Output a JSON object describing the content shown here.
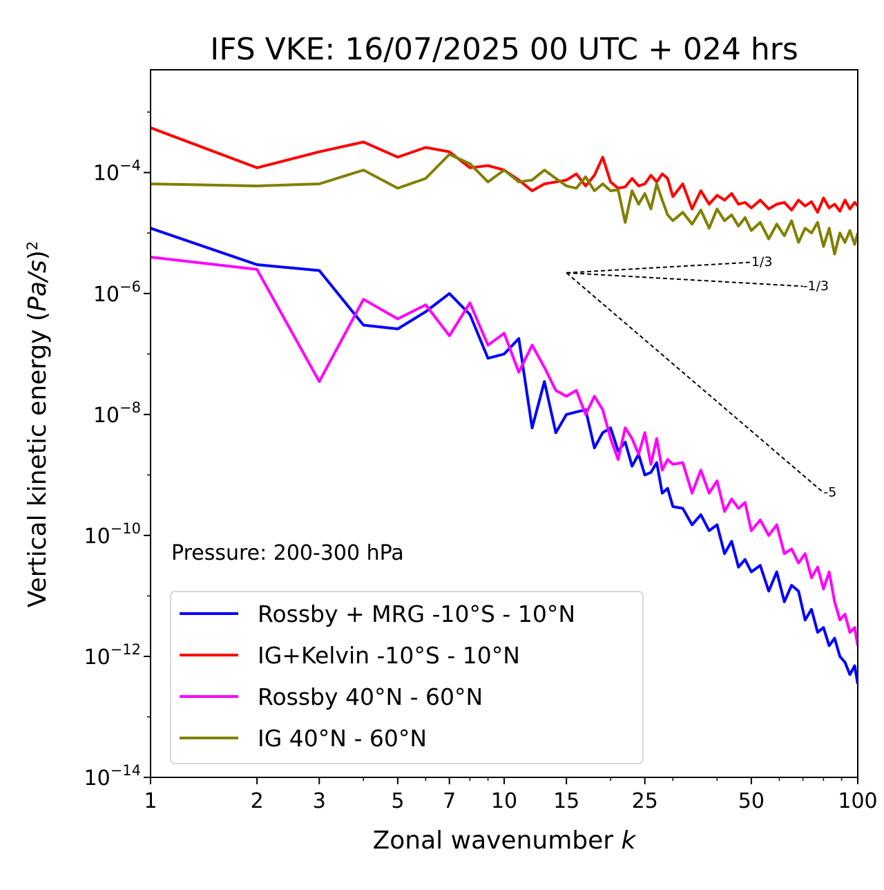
{
  "chart_data": {
    "type": "line",
    "title": "IFS VKE: 16/07/2025 00 UTC + 024 hrs",
    "xlabel": "Zonal wavenumber",
    "xlabel_var": "k",
    "ylabel_prefix": "Vertical kinetic energy (",
    "ylabel_var": "Pa/s",
    "ylabel_suffix": ")",
    "ylabel_power": "2",
    "x_scale": "log",
    "y_scale": "log",
    "xlim": [
      1,
      100
    ],
    "ylim": [
      1e-14,
      0.005
    ],
    "x_ticks": [
      {
        "value": 1,
        "label": "1"
      },
      {
        "value": 2,
        "label": "2"
      },
      {
        "value": 3,
        "label": "3"
      },
      {
        "value": 5,
        "label": "5"
      },
      {
        "value": 7,
        "label": "7"
      },
      {
        "value": 10,
        "label": "10"
      },
      {
        "value": 15,
        "label": "15"
      },
      {
        "value": 25,
        "label": "25"
      },
      {
        "value": 50,
        "label": "50"
      },
      {
        "value": 100,
        "label": "100"
      }
    ],
    "y_ticks": [
      {
        "exp": -4,
        "base": "10",
        "power": "−4"
      },
      {
        "exp": -6,
        "base": "10",
        "power": "−6"
      },
      {
        "exp": -8,
        "base": "10",
        "power": "−8"
      },
      {
        "exp": -10,
        "base": "10",
        "power": "−10"
      },
      {
        "exp": -12,
        "base": "10",
        "power": "−12"
      },
      {
        "exp": -14,
        "base": "10",
        "power": "−14"
      }
    ],
    "grid": false,
    "legend_position": "lower-left",
    "annotation": "Pressure: 200-300 hPa",
    "reference_slopes": [
      {
        "label": "1/3",
        "slope": 0.3333,
        "x0": 15,
        "y0": 2.2e-06,
        "x1": 50
      },
      {
        "label": "-1/3",
        "slope": -0.3333,
        "x0": 15,
        "y0": 2.2e-06,
        "x1": 70
      },
      {
        "label": "-5",
        "slope": -5,
        "x0": 15,
        "y0": 2.2e-06,
        "x1": 80
      }
    ],
    "series": [
      {
        "name": "Rossby + MRG -10°S - 10°N",
        "color": "#0000ff",
        "x": [
          1,
          2,
          3,
          4,
          5,
          6,
          7,
          8,
          9,
          10,
          11,
          12,
          13,
          14,
          15,
          16,
          17,
          18,
          19,
          20,
          21,
          22,
          23,
          24,
          25,
          26,
          27,
          28,
          29,
          30,
          32,
          34,
          36,
          38,
          40,
          42,
          44,
          46,
          48,
          50,
          53,
          56,
          59,
          62,
          65,
          68,
          71,
          74,
          77,
          80,
          83,
          86,
          89,
          92,
          95,
          98,
          100
        ],
        "y": [
          1.2e-05,
          3e-06,
          2.4e-06,
          3e-07,
          2.6e-07,
          5e-07,
          1e-06,
          4.5e-07,
          8.5e-08,
          1e-07,
          1.8e-07,
          6e-09,
          3.5e-08,
          5e-09,
          1e-08,
          1.1e-08,
          1.2e-08,
          2.8e-09,
          5e-09,
          6e-09,
          2.5e-09,
          3.5e-09,
          1.4e-09,
          2.2e-09,
          1e-09,
          1.1e-09,
          1.6e-09,
          5e-10,
          6e-10,
          3e-10,
          2.8e-10,
          1.5e-10,
          2.2e-10,
          1.2e-10,
          1.5e-10,
          5e-11,
          8e-11,
          3e-11,
          4e-11,
          2.5e-11,
          3.2e-11,
          1.2e-11,
          2.5e-11,
          8e-12,
          1.5e-11,
          1.2e-11,
          4e-12,
          6e-12,
          2.5e-12,
          3e-12,
          1.5e-12,
          2e-12,
          1e-12,
          8e-13,
          5e-13,
          7e-13,
          3.5e-13
        ]
      },
      {
        "name": "IG+Kelvin -10°S - 10°N",
        "color": "#ff0000",
        "x": [
          1,
          2,
          3,
          4,
          5,
          6,
          7,
          8,
          9,
          10,
          11,
          12,
          13,
          14,
          15,
          16,
          17,
          18,
          19,
          20,
          21,
          22,
          23,
          24,
          25,
          26,
          27,
          28,
          29,
          30,
          32,
          34,
          36,
          38,
          40,
          42,
          44,
          46,
          48,
          50,
          53,
          56,
          59,
          62,
          65,
          68,
          71,
          74,
          77,
          80,
          83,
          86,
          89,
          92,
          95,
          98,
          100
        ],
        "y": [
          0.00055,
          0.00012,
          0.00022,
          0.00032,
          0.00018,
          0.00026,
          0.00022,
          0.00012,
          0.00013,
          0.00011,
          7.5e-05,
          5e-05,
          6.5e-05,
          7e-05,
          7.5e-05,
          9.5e-05,
          6e-05,
          9e-05,
          0.00018,
          7e-05,
          5.5e-05,
          5.8e-05,
          8e-05,
          6e-05,
          6.5e-05,
          9e-05,
          7e-05,
          9.5e-05,
          8e-05,
          4e-05,
          6.5e-05,
          2.5e-05,
          5e-05,
          3e-05,
          4.2e-05,
          3.5e-05,
          4.5e-05,
          3e-05,
          3.2e-05,
          2.6e-05,
          3.5e-05,
          2.5e-05,
          3e-05,
          3.2e-05,
          2.4e-05,
          3.5e-05,
          2.8e-05,
          3.3e-05,
          2.2e-05,
          3.8e-05,
          2.6e-05,
          3e-05,
          2.3e-05,
          3.5e-05,
          2.5e-05,
          3.2e-05,
          2.8e-05
        ]
      },
      {
        "name": "Rossby 40°N - 60°N",
        "color": "#ff00ff",
        "x": [
          1,
          2,
          3,
          4,
          5,
          6,
          7,
          8,
          9,
          10,
          11,
          12,
          13,
          14,
          15,
          16,
          17,
          18,
          19,
          20,
          21,
          22,
          23,
          24,
          25,
          26,
          27,
          28,
          29,
          30,
          32,
          34,
          36,
          38,
          40,
          42,
          44,
          46,
          48,
          50,
          53,
          56,
          59,
          62,
          65,
          68,
          71,
          74,
          77,
          80,
          83,
          86,
          89,
          92,
          95,
          98,
          100
        ],
        "y": [
          4e-06,
          2.5e-06,
          3.5e-08,
          8e-07,
          3.8e-07,
          6.5e-07,
          2e-07,
          7e-07,
          1.4e-07,
          2.2e-07,
          5e-08,
          1.4e-07,
          6e-08,
          2.5e-08,
          2e-08,
          2.5e-08,
          1e-08,
          2e-08,
          1.2e-08,
          4e-09,
          1.8e-09,
          6e-09,
          4e-09,
          2.2e-09,
          5e-09,
          1.5e-09,
          4e-09,
          1.2e-09,
          1.8e-09,
          1.5e-09,
          1.6e-09,
          5e-10,
          1.2e-09,
          5e-10,
          8e-10,
          2.5e-10,
          4e-10,
          2.8e-10,
          3.5e-10,
          1.2e-10,
          1.8e-10,
          1e-10,
          1.5e-10,
          5e-11,
          6e-11,
          3.5e-11,
          5e-11,
          2e-11,
          3e-11,
          1.3e-11,
          2.5e-11,
          8e-12,
          4e-12,
          5e-12,
          2.5e-12,
          3e-12,
          1.5e-12
        ]
      },
      {
        "name": "IG 40°N - 60°N",
        "color": "#808000",
        "x": [
          1,
          2,
          3,
          4,
          5,
          6,
          7,
          8,
          9,
          10,
          11,
          12,
          13,
          14,
          15,
          16,
          17,
          18,
          19,
          20,
          21,
          22,
          23,
          24,
          25,
          26,
          27,
          28,
          29,
          30,
          32,
          34,
          36,
          38,
          40,
          42,
          44,
          46,
          48,
          50,
          53,
          56,
          59,
          62,
          65,
          68,
          71,
          74,
          77,
          80,
          83,
          86,
          89,
          92,
          95,
          98,
          100
        ],
        "y": [
          6.5e-05,
          6e-05,
          6.5e-05,
          0.00011,
          5.5e-05,
          8e-05,
          0.0002,
          0.00014,
          7e-05,
          0.00011,
          7e-05,
          7.5e-05,
          0.00011,
          8e-05,
          6e-05,
          5.5e-05,
          8.5e-05,
          5e-05,
          6.5e-05,
          5e-05,
          5.2e-05,
          1.5e-05,
          5e-05,
          3e-05,
          4.5e-05,
          2.5e-05,
          6.5e-05,
          3.5e-05,
          2e-05,
          1.6e-05,
          2.2e-05,
          1.4e-05,
          2.4e-05,
          1.2e-05,
          2.5e-05,
          1.6e-05,
          2e-05,
          1.3e-05,
          1.8e-05,
          1.1e-05,
          1.5e-05,
          8e-06,
          1.4e-05,
          9e-06,
          1.6e-05,
          7e-06,
          1.2e-05,
          1e-05,
          1.5e-05,
          6e-06,
          1.2e-05,
          4.5e-06,
          1e-05,
          7e-06,
          1.1e-05,
          6.5e-06,
          1e-05
        ]
      }
    ]
  }
}
